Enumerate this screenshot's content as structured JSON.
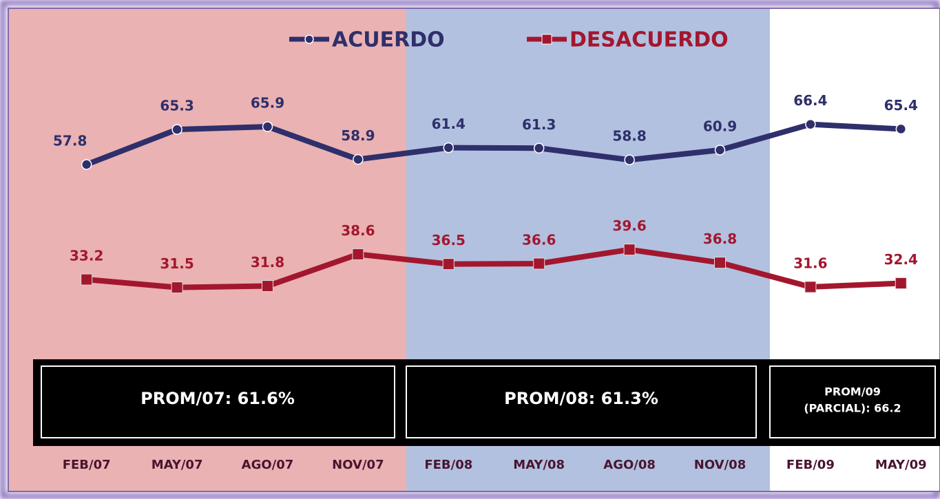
{
  "chart_data": {
    "type": "line",
    "categories": [
      "FEB/07",
      "MAY/07",
      "AGO/07",
      "NOV/07",
      "FEB/08",
      "MAY/08",
      "AGO/08",
      "NOV/08",
      "FEB/09",
      "MAY/09"
    ],
    "series": [
      {
        "name": "ACUERDO",
        "color": "#2e2f6b",
        "values": [
          57.8,
          65.3,
          65.9,
          58.9,
          61.4,
          61.3,
          58.8,
          60.9,
          66.4,
          65.4
        ]
      },
      {
        "name": "DESACUERDO",
        "color": "#a3172e",
        "values": [
          33.2,
          31.5,
          31.8,
          38.6,
          36.5,
          36.6,
          39.6,
          36.8,
          31.6,
          32.4
        ]
      }
    ],
    "legend": "top",
    "annotations": [
      [
        "PROM/07: 61.6%"
      ],
      [
        "PROM/08: 61.3%"
      ],
      [
        "PROM/09",
        "(PARCIAL): 66.2"
      ]
    ]
  }
}
